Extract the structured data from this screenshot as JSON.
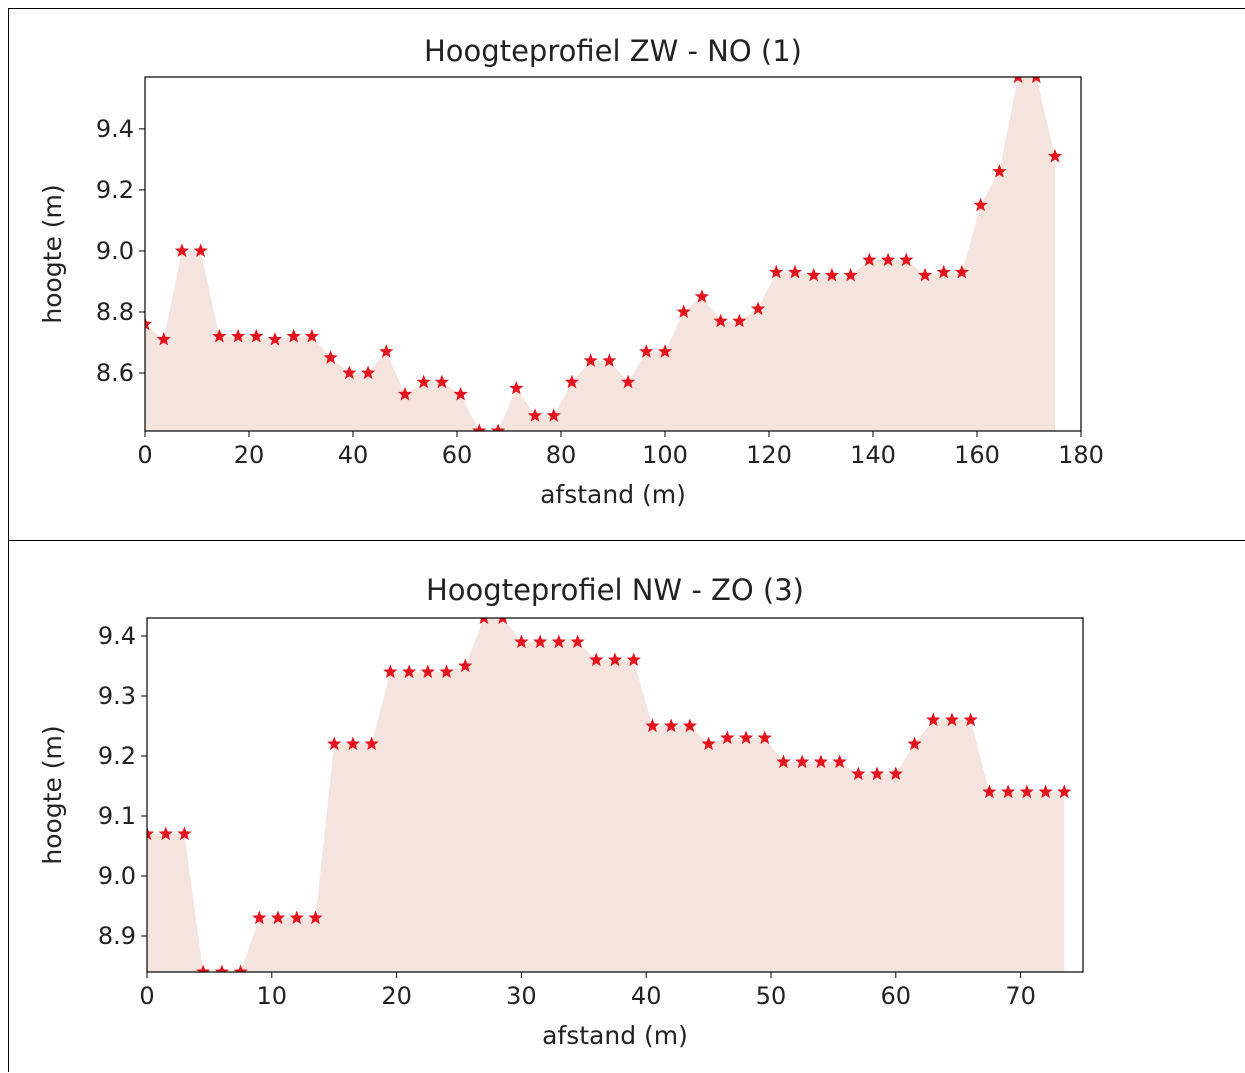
{
  "colors": {
    "fill": "#f5e3dd",
    "marker": "#e3141e",
    "axis": "#000000"
  },
  "chart_data": [
    {
      "type": "area",
      "title": "Hoogteprofiel ZW - NO (1)",
      "xlabel": "afstand (m)",
      "ylabel": "hoogte (m)",
      "xlim": [
        0,
        180
      ],
      "ylim": [
        8.41,
        9.57
      ],
      "xticks": [
        0,
        20,
        40,
        60,
        80,
        100,
        120,
        140,
        160,
        180
      ],
      "yticks": [
        8.6,
        8.8,
        9.0,
        9.2,
        9.4
      ],
      "marker": "star",
      "grid": false,
      "x": [
        0,
        3.6,
        7.1,
        10.7,
        14.3,
        17.9,
        21.4,
        25.0,
        28.6,
        32.1,
        35.7,
        39.3,
        42.9,
        46.4,
        50.0,
        53.6,
        57.1,
        60.7,
        64.3,
        67.9,
        71.4,
        75.0,
        78.6,
        82.1,
        85.7,
        89.3,
        92.9,
        96.4,
        100.0,
        103.6,
        107.1,
        110.7,
        114.3,
        117.9,
        121.4,
        125.0,
        128.6,
        132.1,
        135.7,
        139.3,
        142.9,
        146.4,
        150.0,
        153.6,
        157.1,
        160.7,
        164.3,
        167.9,
        171.4,
        175.0
      ],
      "y": [
        8.76,
        8.71,
        9.0,
        9.0,
        8.72,
        8.72,
        8.72,
        8.71,
        8.72,
        8.72,
        8.65,
        8.6,
        8.6,
        8.67,
        8.53,
        8.57,
        8.57,
        8.53,
        8.41,
        8.41,
        8.55,
        8.46,
        8.46,
        8.57,
        8.64,
        8.64,
        8.57,
        8.67,
        8.67,
        8.8,
        8.85,
        8.77,
        8.77,
        8.81,
        8.93,
        8.93,
        8.92,
        8.92,
        8.92,
        8.97,
        8.97,
        8.97,
        8.92,
        8.93,
        8.93,
        9.15,
        9.26,
        9.57,
        9.57,
        9.31
      ]
    },
    {
      "type": "area",
      "title": "Hoogteprofiel NW - ZO (3)",
      "xlabel": "afstand (m)",
      "ylabel": "hoogte (m)",
      "xlim": [
        0,
        75
      ],
      "ylim": [
        8.84,
        9.43
      ],
      "xticks": [
        0,
        10,
        20,
        30,
        40,
        50,
        60,
        70
      ],
      "yticks": [
        8.9,
        9.0,
        9.1,
        9.2,
        9.3,
        9.4
      ],
      "marker": "star",
      "grid": false,
      "x": [
        0,
        1.5,
        3.0,
        4.5,
        6.0,
        7.5,
        9.0,
        10.5,
        12.0,
        13.5,
        15.0,
        16.5,
        18.0,
        19.5,
        21.0,
        22.5,
        24.0,
        25.5,
        27.0,
        28.5,
        30.0,
        31.5,
        33.0,
        34.5,
        36.0,
        37.5,
        39.0,
        40.5,
        42.0,
        43.5,
        45.0,
        46.5,
        48.0,
        49.5,
        51.0,
        52.5,
        54.0,
        55.5,
        57.0,
        58.5,
        60.0,
        61.5,
        63.0,
        64.5,
        66.0,
        67.5,
        69.0,
        70.5,
        72.0,
        73.5
      ],
      "y": [
        9.07,
        9.07,
        9.07,
        8.84,
        8.84,
        8.84,
        8.93,
        8.93,
        8.93,
        8.93,
        9.22,
        9.22,
        9.22,
        9.34,
        9.34,
        9.34,
        9.34,
        9.35,
        9.43,
        9.43,
        9.39,
        9.39,
        9.39,
        9.39,
        9.36,
        9.36,
        9.36,
        9.25,
        9.25,
        9.25,
        9.22,
        9.23,
        9.23,
        9.23,
        9.19,
        9.19,
        9.19,
        9.19,
        9.17,
        9.17,
        9.17,
        9.22,
        9.26,
        9.26,
        9.26,
        9.14,
        9.14,
        9.14,
        9.14,
        9.14
      ]
    }
  ]
}
